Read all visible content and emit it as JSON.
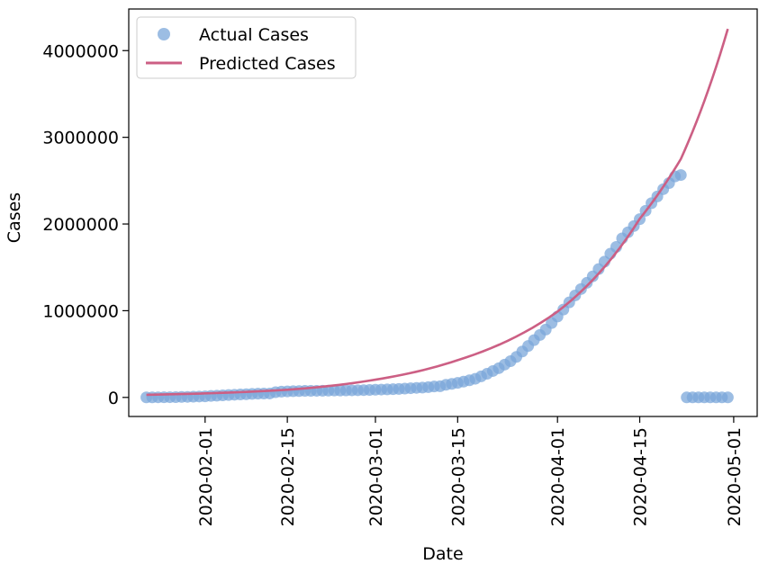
{
  "chart_data": {
    "type": "scatter",
    "xlabel": "Date",
    "ylabel": "Cases",
    "xlim": [
      "2020-01-19",
      "2020-05-05"
    ],
    "ylim": [
      -220000,
      4480000
    ],
    "x_ticks": [
      "2020-02-01",
      "2020-02-15",
      "2020-03-01",
      "2020-03-15",
      "2020-04-01",
      "2020-04-15",
      "2020-05-01"
    ],
    "y_ticks": [
      "0",
      "1000000",
      "2000000",
      "3000000",
      "4000000"
    ],
    "legend": {
      "position": "top-left",
      "entries": [
        "Actual Cases",
        "Predicted Cases"
      ]
    },
    "colors": {
      "actual": "#7ba7d9",
      "predicted": "#cc5f84"
    },
    "grid": false,
    "series": [
      {
        "name": "Actual Cases",
        "kind": "scatter",
        "points": [
          [
            "2020-01-22",
            555
          ],
          [
            "2020-01-23",
            654
          ],
          [
            "2020-01-24",
            941
          ],
          [
            "2020-01-25",
            1434
          ],
          [
            "2020-01-26",
            2118
          ],
          [
            "2020-01-27",
            2927
          ],
          [
            "2020-01-28",
            5578
          ],
          [
            "2020-01-29",
            6166
          ],
          [
            "2020-01-30",
            8234
          ],
          [
            "2020-01-31",
            9927
          ],
          [
            "2020-02-01",
            12038
          ],
          [
            "2020-02-02",
            16787
          ],
          [
            "2020-02-03",
            19881
          ],
          [
            "2020-02-04",
            23892
          ],
          [
            "2020-02-05",
            27635
          ],
          [
            "2020-02-06",
            30794
          ],
          [
            "2020-02-07",
            34391
          ],
          [
            "2020-02-08",
            37120
          ],
          [
            "2020-02-09",
            40150
          ],
          [
            "2020-02-10",
            42762
          ],
          [
            "2020-02-11",
            44802
          ],
          [
            "2020-02-12",
            45221
          ],
          [
            "2020-02-13",
            60368
          ],
          [
            "2020-02-14",
            66885
          ],
          [
            "2020-02-15",
            69030
          ],
          [
            "2020-02-16",
            71224
          ],
          [
            "2020-02-17",
            73258
          ],
          [
            "2020-02-18",
            75136
          ],
          [
            "2020-02-19",
            75639
          ],
          [
            "2020-02-20",
            76197
          ],
          [
            "2020-02-21",
            76823
          ],
          [
            "2020-02-22",
            78579
          ],
          [
            "2020-02-23",
            78965
          ],
          [
            "2020-02-24",
            79568
          ],
          [
            "2020-02-25",
            80413
          ],
          [
            "2020-02-26",
            81395
          ],
          [
            "2020-02-27",
            82754
          ],
          [
            "2020-02-28",
            84120
          ],
          [
            "2020-02-29",
            86011
          ],
          [
            "2020-03-01",
            88369
          ],
          [
            "2020-03-02",
            90306
          ],
          [
            "2020-03-03",
            92840
          ],
          [
            "2020-03-04",
            95120
          ],
          [
            "2020-03-05",
            97886
          ],
          [
            "2020-03-06",
            101801
          ],
          [
            "2020-03-07",
            105847
          ],
          [
            "2020-03-08",
            109821
          ],
          [
            "2020-03-09",
            113590
          ],
          [
            "2020-03-10",
            118620
          ],
          [
            "2020-03-11",
            125875
          ],
          [
            "2020-03-12",
            128352
          ],
          [
            "2020-03-13",
            145205
          ],
          [
            "2020-03-14",
            156101
          ],
          [
            "2020-03-15",
            167454
          ],
          [
            "2020-03-16",
            181574
          ],
          [
            "2020-03-17",
            197102
          ],
          [
            "2020-03-18",
            214821
          ],
          [
            "2020-03-19",
            242570
          ],
          [
            "2020-03-20",
            272208
          ],
          [
            "2020-03-21",
            304507
          ],
          [
            "2020-03-22",
            336953
          ],
          [
            "2020-03-23",
            378235
          ],
          [
            "2020-03-24",
            418045
          ],
          [
            "2020-03-25",
            467653
          ],
          [
            "2020-03-26",
            529591
          ],
          [
            "2020-03-27",
            593291
          ],
          [
            "2020-03-28",
            660706
          ],
          [
            "2020-03-29",
            720117
          ],
          [
            "2020-03-30",
            782365
          ],
          [
            "2020-03-31",
            857487
          ],
          [
            "2020-04-01",
            932605
          ],
          [
            "2020-04-02",
            1013157
          ],
          [
            "2020-04-03",
            1095917
          ],
          [
            "2020-04-04",
            1176060
          ],
          [
            "2020-04-05",
            1249754
          ],
          [
            "2020-04-06",
            1321481
          ],
          [
            "2020-04-07",
            1396476
          ],
          [
            "2020-04-08",
            1479804
          ],
          [
            "2020-04-09",
            1565278
          ],
          [
            "2020-04-10",
            1657526
          ],
          [
            "2020-04-11",
            1735650
          ],
          [
            "2020-04-12",
            1834721
          ],
          [
            "2020-04-13",
            1904838
          ],
          [
            "2020-04-14",
            1976191
          ],
          [
            "2020-04-15",
            2056054
          ],
          [
            "2020-04-16",
            2152437
          ],
          [
            "2020-04-17",
            2240190
          ],
          [
            "2020-04-18",
            2317758
          ],
          [
            "2020-04-19",
            2401378
          ],
          [
            "2020-04-20",
            2472259
          ],
          [
            "2020-04-21",
            2549123
          ],
          [
            "2020-04-22",
            2565000
          ],
          [
            "2020-04-23",
            0
          ],
          [
            "2020-04-24",
            0
          ],
          [
            "2020-04-25",
            0
          ],
          [
            "2020-04-26",
            0
          ],
          [
            "2020-04-27",
            0
          ],
          [
            "2020-04-28",
            0
          ],
          [
            "2020-04-29",
            0
          ],
          [
            "2020-04-30",
            0
          ]
        ]
      },
      {
        "name": "Predicted Cases",
        "kind": "line",
        "points": [
          [
            "2020-01-22",
            30000
          ],
          [
            "2020-02-01",
            46000
          ],
          [
            "2020-02-15",
            88000
          ],
          [
            "2020-03-01",
            205000
          ],
          [
            "2020-03-15",
            430000
          ],
          [
            "2020-04-01",
            990000
          ],
          [
            "2020-04-15",
            2060000
          ],
          [
            "2020-04-22",
            2750000
          ],
          [
            "2020-04-30",
            4250000
          ]
        ]
      }
    ]
  }
}
